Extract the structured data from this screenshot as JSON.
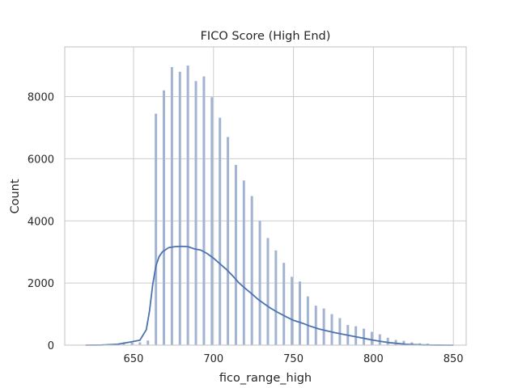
{
  "chart_data": {
    "type": "bar",
    "title": "FICO Score (High End)",
    "xlabel": "fico_range_high",
    "ylabel": "Count",
    "xlim": [
      607,
      858
    ],
    "ylim": [
      0,
      9600
    ],
    "xticks": [
      650,
      700,
      750,
      800,
      850
    ],
    "yticks": [
      0,
      2000,
      4000,
      6000,
      8000
    ],
    "grid": true,
    "colors": {
      "bar": "#a3b4d3",
      "kde": "#4c72b0",
      "grid": "#cccccc"
    },
    "bars": {
      "x": [
        624,
        629,
        634,
        639,
        644,
        649,
        654,
        659,
        664,
        669,
        674,
        679,
        684,
        689,
        694,
        699,
        704,
        709,
        714,
        719,
        724,
        729,
        734,
        739,
        744,
        749,
        754,
        759,
        764,
        769,
        774,
        779,
        784,
        789,
        794,
        799,
        804,
        809,
        814,
        819,
        824,
        829,
        834,
        839,
        844,
        850
      ],
      "values": [
        2,
        3,
        5,
        20,
        95,
        80,
        90,
        150,
        7450,
        8200,
        8950,
        8800,
        9000,
        8500,
        8650,
        7980,
        7320,
        6700,
        5800,
        5300,
        4800,
        4000,
        3450,
        3050,
        2650,
        2200,
        2050,
        1570,
        1270,
        1180,
        1000,
        870,
        650,
        610,
        530,
        430,
        350,
        240,
        170,
        140,
        90,
        60,
        50,
        25,
        10,
        5
      ]
    },
    "kde": {
      "x": [
        620,
        630,
        640,
        648,
        654,
        658,
        660,
        662,
        664,
        666,
        668,
        672,
        676,
        680,
        684,
        688,
        692,
        696,
        700,
        704,
        708,
        712,
        716,
        720,
        724,
        728,
        732,
        736,
        740,
        746,
        750,
        756,
        760,
        766,
        770,
        776,
        780,
        786,
        790,
        796,
        800,
        806,
        810,
        816,
        820,
        826,
        830,
        836,
        840,
        846,
        850
      ],
      "y": [
        0,
        5,
        30,
        100,
        160,
        500,
        1100,
        1950,
        2550,
        2850,
        3000,
        3140,
        3170,
        3180,
        3170,
        3100,
        3060,
        2950,
        2800,
        2620,
        2440,
        2230,
        2000,
        1820,
        1650,
        1470,
        1320,
        1180,
        1060,
        900,
        800,
        700,
        620,
        520,
        470,
        400,
        360,
        300,
        260,
        200,
        160,
        110,
        80,
        50,
        30,
        15,
        8,
        3,
        1,
        0,
        0
      ]
    }
  }
}
